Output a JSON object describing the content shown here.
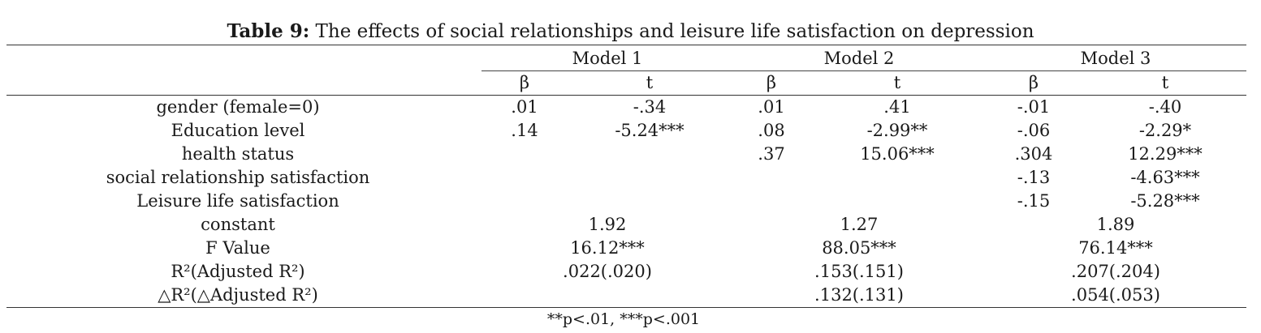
{
  "caption": {
    "label": "Table 9:",
    "text": "The effects of social relationships and leisure life satisfaction on depression"
  },
  "models": [
    "Model 1",
    "Model 2",
    "Model 3"
  ],
  "subheaders": [
    "β",
    "t",
    "β",
    "t",
    "β",
    "t"
  ],
  "rows": [
    {
      "label": "gender (female=0)",
      "values": [
        ".01",
        "-.34",
        ".01",
        ".41",
        "-.01",
        "-.40"
      ]
    },
    {
      "label": "Education level",
      "values": [
        ".14",
        "-5.24***",
        ".08",
        "-2.99**",
        "-.06",
        "-2.29*"
      ]
    },
    {
      "label": "health status",
      "values": [
        "",
        "",
        ".37",
        "15.06***",
        ".304",
        "12.29***"
      ]
    },
    {
      "label": "social relationship satisfaction",
      "values": [
        "",
        "",
        "",
        "",
        "-.13",
        "-4.63***"
      ]
    },
    {
      "label": "Leisure life satisfaction",
      "values": [
        "",
        "",
        "",
        "",
        "-.15",
        "-5.28***"
      ]
    }
  ],
  "summary_rows": [
    {
      "label": "constant",
      "values": [
        "1.92",
        "1.27",
        "1.89"
      ]
    },
    {
      "label": "F Value",
      "values": [
        "16.12***",
        "88.05***",
        "76.14***"
      ]
    },
    {
      "label": "R²(Adjusted R²)",
      "values": [
        ".022(.020)",
        ".153(.151)",
        ".207(.204)"
      ]
    },
    {
      "label": "△R²(△Adjusted R²)",
      "values": [
        "",
        ".132(.131)",
        ".054(.053)"
      ]
    }
  ],
  "footnote": "**p<.01, ***p<.001"
}
